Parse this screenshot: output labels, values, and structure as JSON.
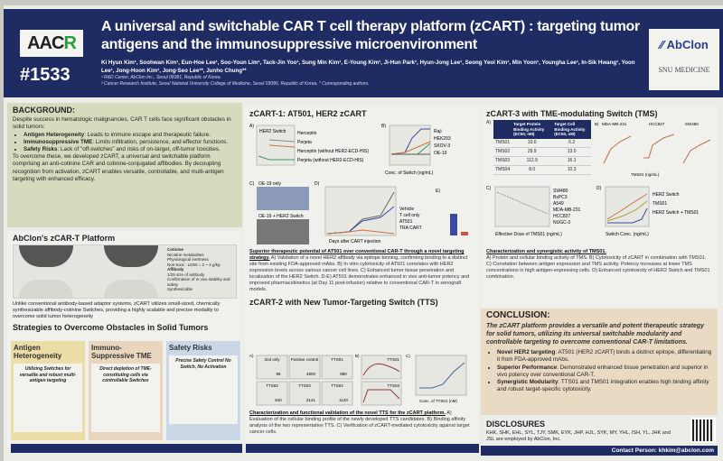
{
  "header": {
    "conference_logo": "AACR",
    "poster_number": "#1533",
    "title": "A universal and switchable CAR T cell therapy platform (zCART) : targeting tumor antigens and the immunosuppressive microenvironment",
    "authors": "Ki Hyun Kim¹, Soohwan Kim¹, Eun-Hoe Lee¹, Soo-Youn Lim¹, Tack-Jin Yoo¹, Sung Min Kim¹, E-Young Kim¹, Ji-Hun Park¹, Hyun-Jong Lee¹, Seong Yeol Kim¹, Min Yoon¹, Youngha Lee¹, In-Sik Hwang¹, Yoon Lee¹, Jong-Hoon Kim¹, Jong-Seo Lee¹*, Junho Chung²*",
    "affiliation1": "¹ R&D Center, AbClon Inc., Seoul 08381, Republic of Korea.",
    "affiliation2": "² Cancer Research Institute, Seoul National University College of Medicine, Seoul 03080, Republic of Korea. * Corresponding authors.",
    "logo_abclon": "AbClon",
    "logo_snu": "SNU MEDICINE"
  },
  "background": {
    "heading": "BACKGROUND:",
    "intro": "Despite success in hematologic malignancies, CAR T cells face significant obstacles in solid tumors:",
    "bullets": [
      {
        "term": "Antigen Heterogeneity",
        "text": ": Leads to immune escape and therapeutic failure."
      },
      {
        "term": "Immunosuppressive TME",
        "text": ": Limits infiltration, persistence, and effector functions."
      },
      {
        "term": "Safety Risks",
        "text": ": Lack of \"off-switches\" and risks of on-target, off-tumor toxicities."
      }
    ],
    "summary": "To overcome these, we developed zCART, a universal and switchable platform comprising an anti-cotinine CAR and cotinine-conjugated affibodies. By decoupling recognition from activation, zCART enables versatile, controllable, and multi-antigen targeting with enhanced efficacy."
  },
  "platform": {
    "heading": "AbClon's zCAR-T Platform",
    "cotinine_label": "Cotinine",
    "cotinine_points": [
      "Nicotine metabolites",
      "Physiological inertness",
      "Non-toxic : LD50 = 2 ~ 4 g/kg"
    ],
    "affibody_label": "Affibody",
    "affibody_points": [
      "1/25 size of antibody",
      "Confirmation of in vivo stability and safety",
      "Synthesizable"
    ],
    "text": "Unlike conventional antibody-based adaptor systems, zCART utilizes small-sized, chemically synthesizable affibody-cotinine Switches, providing a highly scalable and precise modality to overcome solid tumor heterogeneity"
  },
  "strategies": {
    "heading": "Strategies to Overcome Obstacles in Solid Tumors",
    "items": [
      {
        "title": "Antigen Heterogeneity",
        "text": "Utilizing Switches for versatile and robust multi-antigen targeting",
        "color": "#ecdca6"
      },
      {
        "title": "Immuno-Suppressive TME",
        "text": "Direct depletion of TME-constituting cells via controllable Switches",
        "color": "#e9d6bf"
      },
      {
        "title": "Safety Risks",
        "text": "Precise Safety Control No Switch, No Activation",
        "color": "#cad7e6"
      }
    ]
  },
  "zcart1": {
    "heading": "zCART-1: AT501, HER2 zCART",
    "panel_labels": [
      "A)",
      "B)",
      "C)",
      "D)",
      "E)"
    ],
    "legend_a": [
      "Herceptin",
      "Perjeta",
      "Herceptin (without HER2-ECD-HIS)",
      "Perjeta (without HER2-ECD-HIS)"
    ],
    "legend_b": [
      "Raji",
      "HEK293",
      "SKOV-3",
      "OE-19"
    ],
    "legend_d": [
      "Vehicle",
      "T cell only",
      "AT501",
      "TRA CART"
    ],
    "label_a": "HER2 Switch",
    "xlabel_b": "Conc. of Switch (ng/mL)",
    "xlabel_d": "Days after CART injection",
    "label_c1": "OE-19 only",
    "label_c2": "OE-19 + HER2 Switch",
    "caption_title": "Superior therapeutic potential of AT501 over conventional CAR-T through a novel targeting strategy.",
    "caption": "A) Validation of a novel HER2 affibody via epitope binning, confirming binding to a distinct site from existing FDA-approved mAbs. B) In vitro cytotoxicity of AT501 correlates with HER2 expression levels across various cancer cell lines. C) Enhanced tumor tissue penetration and localization of the HER2 Switch. D-E) AT501 demonstrates enhanced in vivo anti-tumor potency and improved pharmacokinetics (at Day 11 post-infusion) relative to conventional CAR-T in xenograft models."
  },
  "zcart2": {
    "heading": "zCART-2 with New Tumor-Targeting Switch (TTS)",
    "panel_labels": [
      "A)",
      "B)",
      "C)"
    ],
    "flow_panels": [
      "2nd only",
      "Positive control",
      "TTS01",
      "TTS02",
      "TTS03",
      "TTS04"
    ],
    "flow_values": [
      "95",
      "4800",
      "880",
      "840",
      "2141",
      "1120"
    ],
    "spr_labels": [
      "TTS01",
      "TTS03"
    ],
    "xlabel_c": "Conc. of TTS01 (nM)",
    "caption_title": "Characterization and functional validation of the novel TTS for the zCART platform.",
    "caption": "A) Evaluation of the cellular binding profile of the newly developed TTS candidates. B) Binding affinity analysis of the two representative TTS. C) Verification of zCART-mediated cytotoxicity against target cancer cells."
  },
  "zcart3": {
    "heading": "zCART-3 with TME-modulating Switch (TMS)",
    "panel_labels": [
      "A)",
      "B)",
      "C)",
      "D)"
    ],
    "table": {
      "headers": [
        "",
        "Target Protein Binding Activity (EC50, nM)",
        "Target Cell Binding Activity (EC50, nM)"
      ],
      "rows": [
        [
          "TMS01",
          "10.0",
          "6.2"
        ],
        [
          "TMS02",
          "29.9",
          "13.0"
        ],
        [
          "TMS03",
          "112.9",
          "16.1"
        ],
        [
          "TMS04",
          "8.0",
          "10.3"
        ]
      ]
    },
    "cell_lines_b": [
      "MDA-MB-231",
      "HCC827",
      "SW480"
    ],
    "xlabel_b": "TMS01 (ng/mL)",
    "legend_c": [
      "SW480",
      "BxPC3",
      "A549",
      "MDA-MB-231",
      "HCC827",
      "NUGC-3"
    ],
    "xlabel_c": "Effective Dose of TMS01 (ng/mL)",
    "legend_d": [
      "HER2 Switch",
      "TMS01",
      "HER2 Switch + TMS01"
    ],
    "xlabel_d": "Switch Conc. (ng/mL)",
    "caption_title": "Characterization and synergistic activity of TMS01.",
    "caption": "A) Protein and cellular binding activity of TMS. B) Cytotoxicity of zCART in combination with TMS01. C) Correlation between antigen expression and TMS activity. Potency increases at lower TMS concentrations in high antigen-expressing cells. D) Enhanced cytotoxicity of HER2 Switch and TMS01 combination."
  },
  "conclusion": {
    "heading": "CONCLUSION:",
    "lead": "The zCART platform provides a versatile and potent therapeutic strategy for solid tumors, utilizing its universal switchable modularity and controllable targeting to overcome conventional CAR-T limitations.",
    "bullets": [
      {
        "term": "Novel HER2 targeting",
        "text": ": AT501 (HER2 zCART) binds a distinct epitope, differentiating it from FDA-approved mAbs."
      },
      {
        "term": "Superior Performance",
        "text": ": Demonstrated enhanced tissue penetration and superior in vivo potency over conventional CAR-T."
      },
      {
        "term": "Synergistic Modularity",
        "text": ": TTS01 and TMS01 integration enables high binding affinity and robust target-specific cytotoxicity."
      }
    ]
  },
  "disclosures": {
    "heading": "DISCLOSURES",
    "text": "KHK, SHK, EHL, SYL, TJY, SMK, EYK, JHP, HJL, SYK, MY, YHL, ISH, YL, JHK and JSL are employed by AbClon, Inc."
  },
  "contact": {
    "text": "Contact Person: khkim@abclon.com"
  },
  "colors": {
    "navy": "#1f2b63",
    "background_box": "#d7dbbd",
    "conclusion_box": "#e9dac3"
  }
}
